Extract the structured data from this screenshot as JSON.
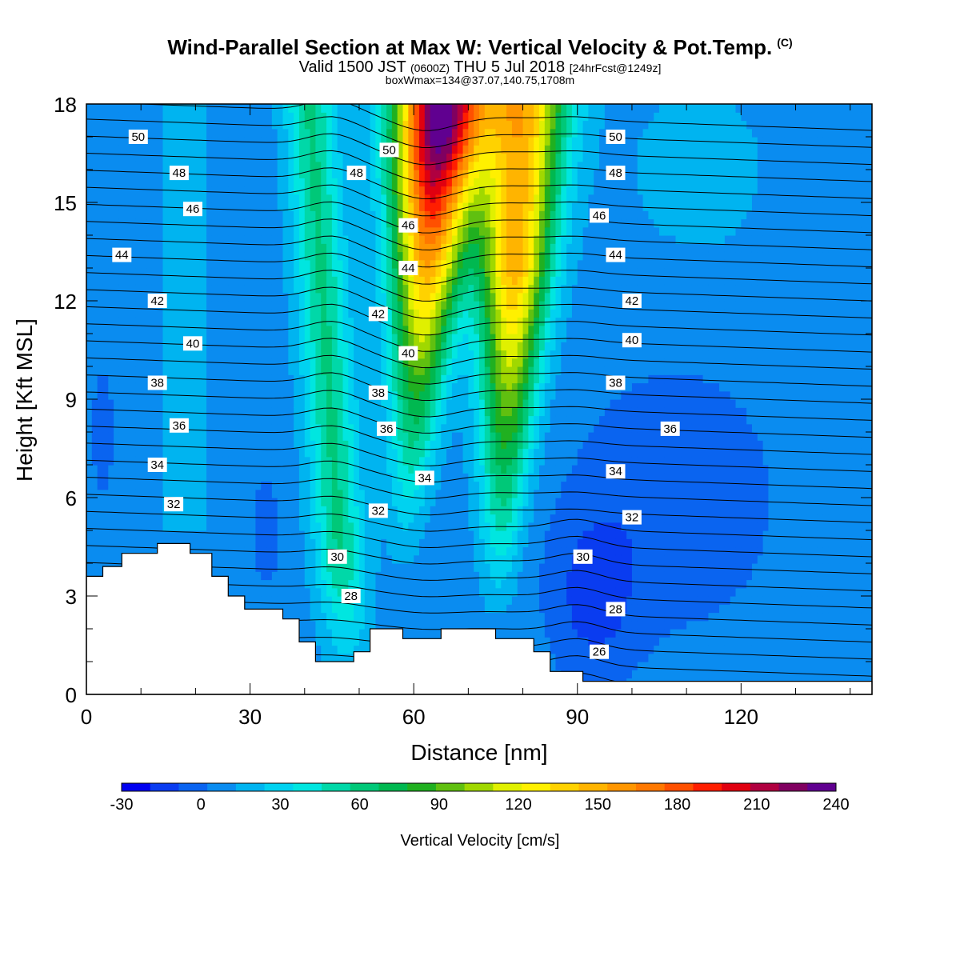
{
  "title": {
    "main": "Wind-Parallel Section at Max W: Vertical Velocity & Pot.Temp.",
    "mark": "(C)",
    "valid_a": "Valid 1500 JST",
    "valid_b": "(0600Z)",
    "valid_c": "THU 5 Jul 2018",
    "valid_d": "[24hrFcst@1249z]",
    "box": "boxWmax=134@37.07,140.75,1708m"
  },
  "colorbar": {
    "label": "Vertical Velocity [cm/s]",
    "ticks": [
      "-30",
      "0",
      "30",
      "60",
      "90",
      "120",
      "150",
      "180",
      "210",
      "240"
    ],
    "colors": [
      "#0000f0",
      "#0a3cf0",
      "#0a64f0",
      "#0a8cf0",
      "#00b4f0",
      "#00d2f0",
      "#00e6e0",
      "#00d8a8",
      "#00c878",
      "#00b850",
      "#20b020",
      "#60c010",
      "#a0d800",
      "#e0f000",
      "#fff000",
      "#ffd200",
      "#ffb400",
      "#ff9600",
      "#ff7800",
      "#ff5000",
      "#ff1e00",
      "#e00010",
      "#b00040",
      "#800060",
      "#600090"
    ]
  },
  "chart_data": {
    "type": "heatmap",
    "xlabel": "Distance [nm]",
    "ylabel": "Height [Kft MSL]",
    "xlim": [
      0,
      144
    ],
    "ylim": [
      0,
      18
    ],
    "xticks": [
      "0",
      "30",
      "60",
      "90",
      "120"
    ],
    "yticks": [
      "0",
      "3",
      "6",
      "9",
      "12",
      "15",
      "18"
    ],
    "variable": "vertical velocity (cm/s)",
    "updraft_cores": [
      {
        "x": 58,
        "max_height": 18,
        "peak_value": 240
      },
      {
        "x": 79,
        "max_height": 18,
        "peak_value": 150
      },
      {
        "x": 42,
        "max_height": 18,
        "peak_value": 60
      }
    ],
    "contours": {
      "variable": "potential temperature (C)",
      "labels": [
        {
          "text": "50",
          "x": 9.5,
          "y": 17.0
        },
        {
          "text": "48",
          "x": 17,
          "y": 15.9
        },
        {
          "text": "46",
          "x": 19.5,
          "y": 14.8
        },
        {
          "text": "44",
          "x": 6.5,
          "y": 13.4
        },
        {
          "text": "42",
          "x": 13,
          "y": 12.0
        },
        {
          "text": "40",
          "x": 19.5,
          "y": 10.7
        },
        {
          "text": "38",
          "x": 13,
          "y": 9.5
        },
        {
          "text": "36",
          "x": 17,
          "y": 8.2
        },
        {
          "text": "34",
          "x": 13,
          "y": 7.0
        },
        {
          "text": "32",
          "x": 16,
          "y": 5.8
        },
        {
          "text": "50",
          "x": 55.5,
          "y": 16.6
        },
        {
          "text": "48",
          "x": 49.5,
          "y": 15.9
        },
        {
          "text": "46",
          "x": 59,
          "y": 14.3
        },
        {
          "text": "44",
          "x": 59,
          "y": 13.0
        },
        {
          "text": "42",
          "x": 53.5,
          "y": 11.6
        },
        {
          "text": "40",
          "x": 59,
          "y": 10.4
        },
        {
          "text": "38",
          "x": 53.5,
          "y": 9.2
        },
        {
          "text": "36",
          "x": 55,
          "y": 8.1
        },
        {
          "text": "34",
          "x": 62,
          "y": 6.6
        },
        {
          "text": "32",
          "x": 53.5,
          "y": 5.6
        },
        {
          "text": "30",
          "x": 46,
          "y": 4.2
        },
        {
          "text": "28",
          "x": 48.5,
          "y": 3.0
        },
        {
          "text": "50",
          "x": 97,
          "y": 17.0
        },
        {
          "text": "48",
          "x": 97,
          "y": 15.9
        },
        {
          "text": "46",
          "x": 94,
          "y": 14.6
        },
        {
          "text": "44",
          "x": 97,
          "y": 13.4
        },
        {
          "text": "42",
          "x": 100,
          "y": 12.0
        },
        {
          "text": "40",
          "x": 100,
          "y": 10.8
        },
        {
          "text": "38",
          "x": 97,
          "y": 9.5
        },
        {
          "text": "36",
          "x": 107,
          "y": 8.1
        },
        {
          "text": "34",
          "x": 97,
          "y": 6.8
        },
        {
          "text": "32",
          "x": 100,
          "y": 5.4
        },
        {
          "text": "30",
          "x": 91,
          "y": 4.2
        },
        {
          "text": "28",
          "x": 97,
          "y": 2.6
        },
        {
          "text": "26",
          "x": 94,
          "y": 1.3
        }
      ]
    },
    "terrain": [
      [
        0,
        3.6
      ],
      [
        3,
        3.6
      ],
      [
        3,
        3.9
      ],
      [
        6.5,
        3.9
      ],
      [
        6.5,
        4.3
      ],
      [
        13,
        4.3
      ],
      [
        13,
        4.6
      ],
      [
        19,
        4.6
      ],
      [
        19,
        4.3
      ],
      [
        23,
        4.3
      ],
      [
        23,
        3.6
      ],
      [
        26,
        3.6
      ],
      [
        26,
        3.0
      ],
      [
        29,
        3.0
      ],
      [
        29,
        2.6
      ],
      [
        36,
        2.6
      ],
      [
        36,
        2.3
      ],
      [
        39,
        2.3
      ],
      [
        39,
        1.6
      ],
      [
        42,
        1.6
      ],
      [
        42,
        1.0
      ],
      [
        49,
        1.0
      ],
      [
        49,
        1.3
      ],
      [
        52,
        1.3
      ],
      [
        52,
        2.0
      ],
      [
        58,
        2.0
      ],
      [
        58,
        1.7
      ],
      [
        65,
        1.7
      ],
      [
        65,
        2.0
      ],
      [
        75,
        2.0
      ],
      [
        75,
        1.7
      ],
      [
        82,
        1.7
      ],
      [
        82,
        1.3
      ],
      [
        85,
        1.3
      ],
      [
        85,
        0.7
      ],
      [
        91,
        0.7
      ],
      [
        91,
        0.4
      ],
      [
        144,
        0.4
      ]
    ]
  }
}
